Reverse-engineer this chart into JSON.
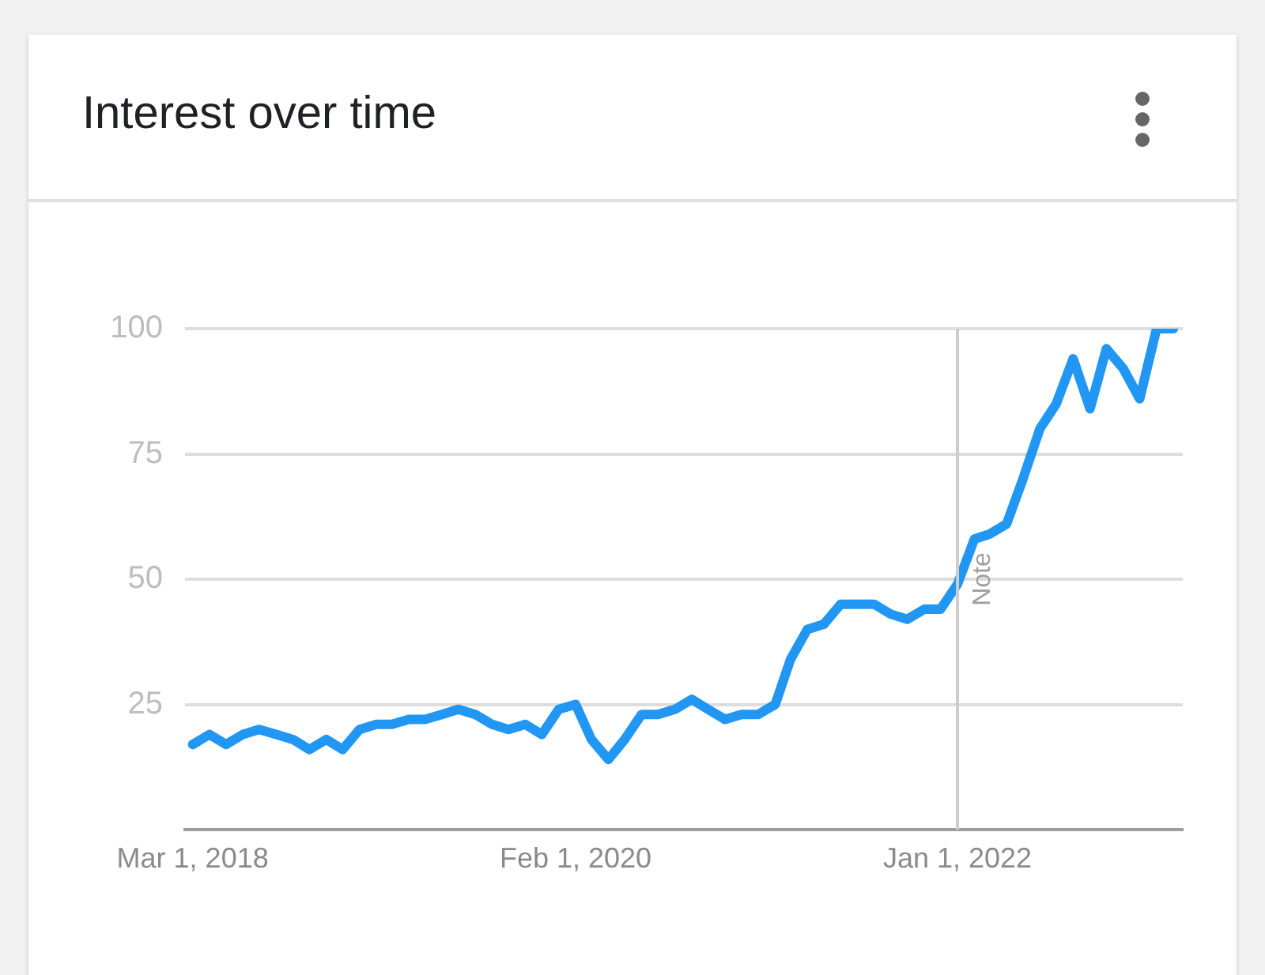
{
  "chart_data": {
    "type": "line",
    "title": "Interest over time",
    "x": [
      "2018-03",
      "2018-04",
      "2018-05",
      "2018-06",
      "2018-07",
      "2018-08",
      "2018-09",
      "2018-10",
      "2018-11",
      "2018-12",
      "2019-01",
      "2019-02",
      "2019-03",
      "2019-04",
      "2019-05",
      "2019-06",
      "2019-07",
      "2019-08",
      "2019-09",
      "2019-10",
      "2019-11",
      "2019-12",
      "2020-01",
      "2020-02",
      "2020-03",
      "2020-04",
      "2020-05",
      "2020-06",
      "2020-07",
      "2020-08",
      "2020-09",
      "2020-10",
      "2020-11",
      "2020-12",
      "2021-01",
      "2021-02",
      "2021-03",
      "2021-04",
      "2021-05",
      "2021-06",
      "2021-07",
      "2021-08",
      "2021-09",
      "2021-10",
      "2021-11",
      "2021-12",
      "2022-01",
      "2022-02",
      "2022-03",
      "2022-04",
      "2022-05",
      "2022-06",
      "2022-07",
      "2022-08",
      "2022-09",
      "2022-10",
      "2022-11",
      "2022-12",
      "2023-01",
      "2023-02"
    ],
    "series": [
      {
        "color": "#2196f3",
        "values": [
          17,
          19,
          17,
          19,
          20,
          19,
          18,
          16,
          18,
          16,
          20,
          21,
          21,
          22,
          22,
          23,
          24,
          23,
          21,
          20,
          21,
          19,
          24,
          25,
          18,
          14,
          18,
          23,
          23,
          24,
          26,
          24,
          22,
          23,
          23,
          25,
          34,
          40,
          41,
          45,
          45,
          45,
          43,
          42,
          44,
          44,
          49,
          58,
          59,
          61,
          70,
          80,
          85,
          94,
          84,
          96,
          92,
          86,
          100,
          100
        ]
      }
    ],
    "xlim": [
      "2018-02-15",
      "2023-02-18"
    ],
    "xticks": [
      {
        "value": "2018-03-01",
        "label": "Mar 1, 2018"
      },
      {
        "value": "2020-02-01",
        "label": "Feb 1, 2020"
      },
      {
        "value": "2022-01-01",
        "label": "Jan 1, 2022"
      }
    ],
    "ylim": [
      0,
      100
    ],
    "yticks": [
      25,
      50,
      75,
      100
    ],
    "grid": "y",
    "ref_lines": [
      {
        "axis": "x",
        "value": "2022-01-01",
        "label": "Note",
        "color": "#cccccc"
      }
    ]
  }
}
